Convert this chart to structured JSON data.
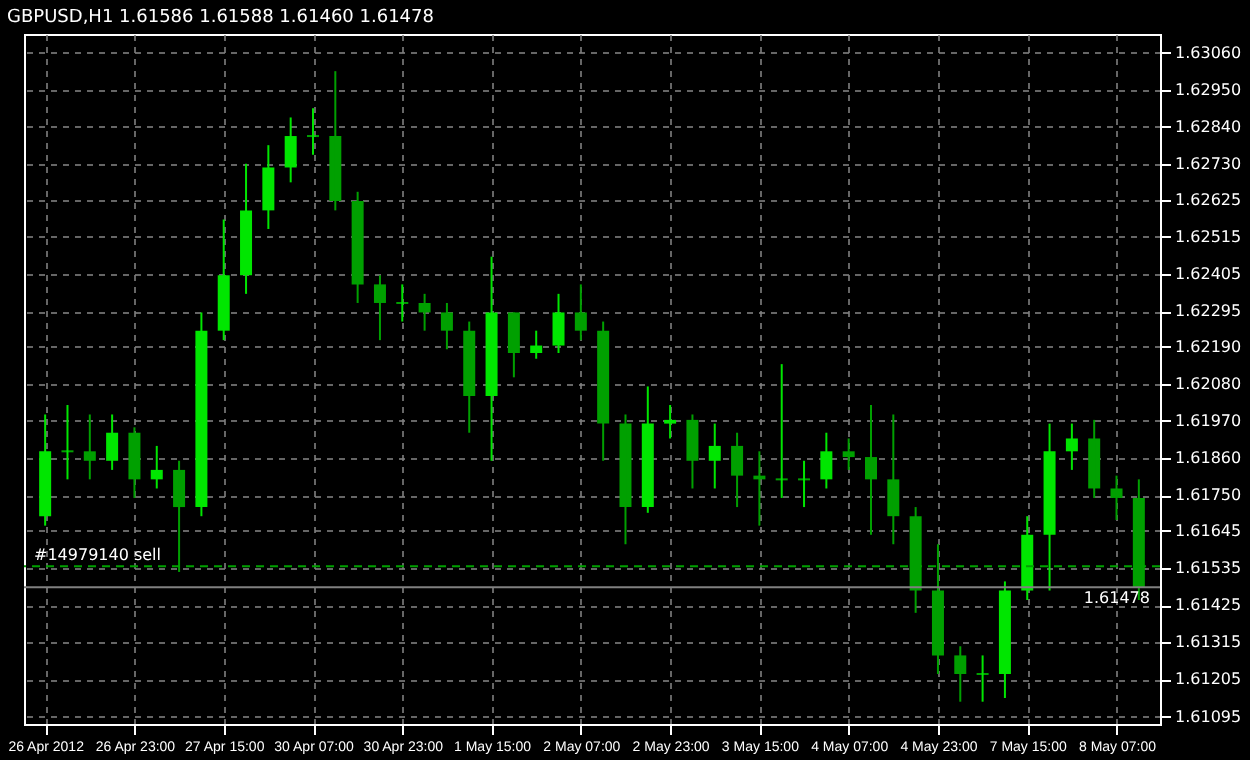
{
  "chart_data": {
    "type": "candlestick",
    "title": "GBPUSD,H1  1.61586 1.61588 1.61460 1.61478",
    "categories": [
      "26 Apr 2012",
      null,
      null,
      null,
      "26 Apr 23:00",
      null,
      null,
      null,
      "27 Apr 15:00",
      null,
      null,
      null,
      "30 Apr 07:00",
      null,
      null,
      null,
      "30 Apr 23:00",
      null,
      null,
      null,
      "1 May 15:00",
      null,
      null,
      null,
      "2 May 07:00",
      null,
      null,
      null,
      "2 May 23:00",
      null,
      null,
      null,
      "3 May 15:00",
      null,
      null,
      null,
      "4 May 07:00",
      null,
      null,
      null,
      "4 May 23:00",
      null,
      null,
      null,
      "7 May 15:00",
      null,
      null,
      null,
      "8 May 07:00",
      null
    ],
    "ohlc": [
      [
        1.61688,
        1.61989,
        1.6166,
        1.6188
      ],
      [
        1.6188,
        1.62017,
        1.61797,
        1.6188
      ],
      [
        1.6188,
        1.61989,
        1.61797,
        1.61852
      ],
      [
        1.61852,
        1.61989,
        1.61825,
        1.61935
      ],
      [
        1.61935,
        1.61951,
        1.61742,
        1.61797
      ],
      [
        1.61797,
        1.61896,
        1.6177,
        1.61825
      ],
      [
        1.61825,
        1.61852,
        1.61523,
        1.61715
      ],
      [
        1.61715,
        1.62291,
        1.61688,
        1.62237
      ],
      [
        1.62237,
        1.62566,
        1.62209,
        1.62401
      ],
      [
        1.62401,
        1.62731,
        1.62346,
        1.62593
      ],
      [
        1.62593,
        1.62786,
        1.62538,
        1.6272
      ],
      [
        1.6272,
        1.62868,
        1.62676,
        1.62813
      ],
      [
        1.62813,
        1.62895,
        1.62758,
        1.62813
      ],
      [
        1.62813,
        1.63005,
        1.62593,
        1.62621
      ],
      [
        1.62621,
        1.62648,
        1.62319,
        1.62374
      ],
      [
        1.62374,
        1.62401,
        1.62209,
        1.62319
      ],
      [
        1.62319,
        1.62374,
        1.62264,
        1.62319
      ],
      [
        1.62319,
        1.62346,
        1.62237,
        1.62291
      ],
      [
        1.62291,
        1.62319,
        1.62182,
        1.62237
      ],
      [
        1.62237,
        1.62264,
        1.61935,
        1.62044
      ],
      [
        1.62044,
        1.62456,
        1.61852,
        1.62291
      ],
      [
        1.62291,
        1.62291,
        1.62099,
        1.62171
      ],
      [
        1.62171,
        1.62237,
        1.62154,
        1.62193
      ],
      [
        1.62193,
        1.62346,
        1.62171,
        1.62291
      ],
      [
        1.62291,
        1.62374,
        1.62209,
        1.62237
      ],
      [
        1.62237,
        1.62264,
        1.61852,
        1.61962
      ],
      [
        1.61962,
        1.61989,
        1.61605,
        1.61715
      ],
      [
        1.61715,
        1.62072,
        1.61698,
        1.61962
      ],
      [
        1.61962,
        1.62017,
        1.61918,
        1.61973
      ],
      [
        1.61973,
        1.61989,
        1.6177,
        1.61852
      ],
      [
        1.61852,
        1.61962,
        1.6177,
        1.61896
      ],
      [
        1.61896,
        1.61935,
        1.61715,
        1.61808
      ],
      [
        1.61808,
        1.6188,
        1.6166,
        1.61797
      ],
      [
        1.61797,
        1.62138,
        1.61742,
        1.61797
      ],
      [
        1.61797,
        1.61852,
        1.61715,
        1.61797
      ],
      [
        1.61797,
        1.61935,
        1.6177,
        1.6188
      ],
      [
        1.6188,
        1.61918,
        1.61825,
        1.61863
      ],
      [
        1.61863,
        1.62017,
        1.61633,
        1.61797
      ],
      [
        1.61797,
        1.61989,
        1.61605,
        1.61688
      ],
      [
        1.61688,
        1.61715,
        1.61402,
        1.61468
      ],
      [
        1.61468,
        1.61605,
        1.61221,
        1.61276
      ],
      [
        1.61276,
        1.61303,
        1.61139,
        1.61221
      ],
      [
        1.61221,
        1.61276,
        1.61139,
        1.61221
      ],
      [
        1.61221,
        1.61495,
        1.6115,
        1.61468
      ],
      [
        1.61468,
        1.61688,
        1.6144,
        1.61633
      ],
      [
        1.61633,
        1.61962,
        1.61468,
        1.6188
      ],
      [
        1.6188,
        1.61962,
        1.61825,
        1.61918
      ],
      [
        1.61918,
        1.61973,
        1.61742,
        1.6177
      ],
      [
        1.6177,
        1.61808,
        1.61677,
        1.61742
      ],
      [
        1.61742,
        1.61797,
        1.6144,
        1.61478
      ]
    ],
    "colors": [
      "#00e600",
      "#00e600",
      "#00a000",
      "#00e600",
      "#00a000",
      "#00e600",
      "#00a000",
      "#00e600",
      "#00e600",
      "#00e600",
      "#00e600",
      "#00e600",
      "#00e600",
      "#00a000",
      "#00a000",
      "#00a000",
      "#00e600",
      "#00a000",
      "#00a000",
      "#00a000",
      "#00e600",
      "#00a000",
      "#00e600",
      "#00e600",
      "#00a000",
      "#00a000",
      "#00a000",
      "#00e600",
      "#00e600",
      "#00a000",
      "#00e600",
      "#00a000",
      "#00a000",
      "#00e600",
      "#00e600",
      "#00e600",
      "#00a000",
      "#00a000",
      "#00a000",
      "#00a000",
      "#00a000",
      "#00a000",
      "#00e600",
      "#00e600",
      "#00e600",
      "#00e600",
      "#00e600",
      "#00a000",
      "#00a000",
      "#00a000"
    ],
    "ylim": [
      1.61073,
      1.63115
    ],
    "yticks": [
      {
        "value": 1.6306,
        "label": "1.63060"
      },
      {
        "value": 1.6295,
        "label": "1.62950"
      },
      {
        "value": 1.6284,
        "label": "1.62840"
      },
      {
        "value": 1.6273,
        "label": "1.62730"
      },
      1.62625,
      1.62515,
      1.62405,
      1.62295,
      {
        "value": 1.6219,
        "label": "1.62190"
      },
      {
        "value": 1.6208,
        "label": "1.62080"
      },
      {
        "value": 1.6197,
        "label": "1.61970"
      },
      {
        "value": 1.6186,
        "label": "1.61860"
      },
      {
        "value": 1.6175,
        "label": "1.61750"
      },
      1.61645,
      1.61535,
      1.61425,
      1.61315,
      1.61205,
      1.61095
    ],
    "ref_lines": [
      {
        "axis": "y",
        "value": 1.6154,
        "label": "#14979140 sell",
        "color": "#00a000",
        "line_style": "dashed"
      },
      {
        "axis": "y",
        "value": 1.61478,
        "label": "1.61478",
        "color": "#808080",
        "line_style": "solid"
      }
    ],
    "grid": true
  }
}
